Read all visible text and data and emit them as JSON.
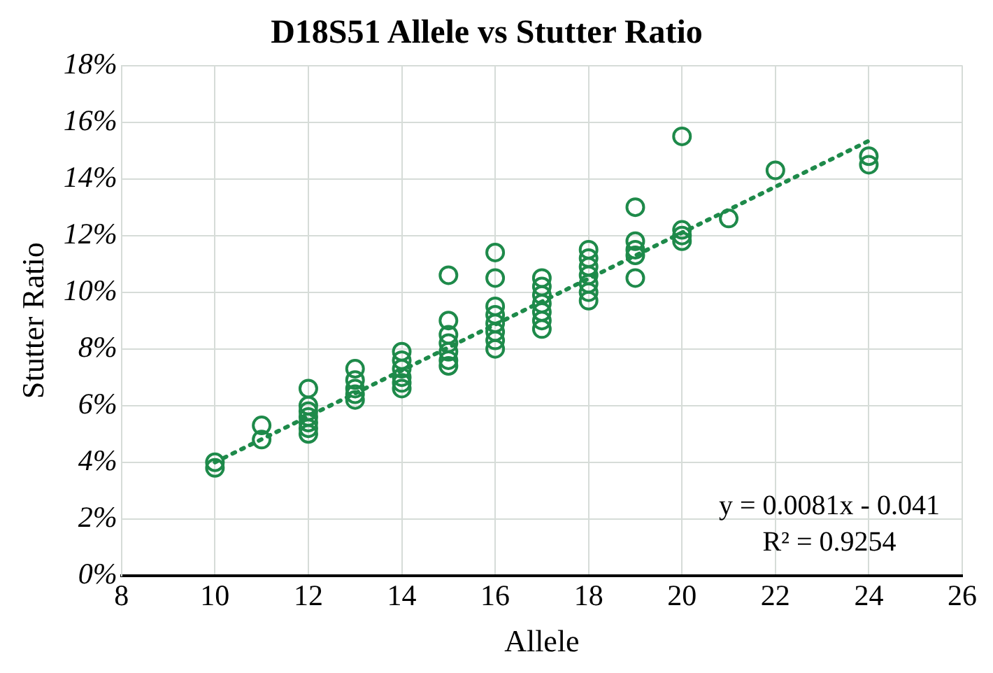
{
  "chart_data": {
    "type": "scatter",
    "title": "D18S51 Allele vs Stutter Ratio",
    "xlabel": "Allele",
    "ylabel": "Stutter Ratio",
    "xlim": [
      8,
      26
    ],
    "xticks": [
      8,
      10,
      12,
      14,
      16,
      18,
      20,
      22,
      24,
      26
    ],
    "ylim": [
      0,
      18
    ],
    "yticks": [
      {
        "value": 0,
        "label": "0%"
      },
      {
        "value": 2,
        "label": "2%"
      },
      {
        "value": 4,
        "label": "4%"
      },
      {
        "value": 6,
        "label": "6%"
      },
      {
        "value": 8,
        "label": "8%"
      },
      {
        "value": 10,
        "label": "10%"
      },
      {
        "value": 12,
        "label": "12%"
      },
      {
        "value": 14,
        "label": "14%"
      },
      {
        "value": 16,
        "label": "16%"
      },
      {
        "value": 18,
        "label": "18%"
      }
    ],
    "grid": true,
    "legend": false,
    "marker": "circle",
    "annotations": [
      "y = 0.0081x - 0.041",
      "R² = 0.9254"
    ],
    "series": [
      {
        "color": "#1e8a4a",
        "x": [
          10,
          10,
          11,
          11,
          12,
          12,
          12,
          12,
          12,
          12,
          12,
          13,
          13,
          13,
          13,
          13,
          14,
          14,
          14,
          14,
          14,
          14,
          15,
          15,
          15,
          15,
          15,
          15,
          15,
          16,
          16,
          16,
          16,
          16,
          16,
          16,
          16,
          17,
          17,
          17,
          17,
          17,
          17,
          17,
          18,
          18,
          18,
          18,
          18,
          18,
          18,
          19,
          19,
          19,
          19,
          19,
          20,
          20,
          20,
          20,
          21,
          22,
          24,
          24
        ],
        "values": [
          4.0,
          3.8,
          5.3,
          4.8,
          6.6,
          6.0,
          5.8,
          5.6,
          5.4,
          5.2,
          5.0,
          7.3,
          6.9,
          6.6,
          6.4,
          6.2,
          7.9,
          7.6,
          7.3,
          7.0,
          6.8,
          6.6,
          10.6,
          9.0,
          8.5,
          8.2,
          7.9,
          7.6,
          7.4,
          11.4,
          10.5,
          9.5,
          9.2,
          8.9,
          8.6,
          8.3,
          8.0,
          10.5,
          10.2,
          9.9,
          9.6,
          9.3,
          9.0,
          8.7,
          11.5,
          11.2,
          10.9,
          10.6,
          10.3,
          10.0,
          9.7,
          13.0,
          11.8,
          11.5,
          11.3,
          10.5,
          15.5,
          12.2,
          12.0,
          11.8,
          12.6,
          14.3,
          14.8,
          14.5
        ]
      },
      {
        "type": "line",
        "color": "#1e8a4a",
        "line_style": "dotted",
        "marker": "none",
        "x": [
          10,
          24
        ],
        "values": [
          4.0,
          15.34
        ]
      }
    ]
  }
}
